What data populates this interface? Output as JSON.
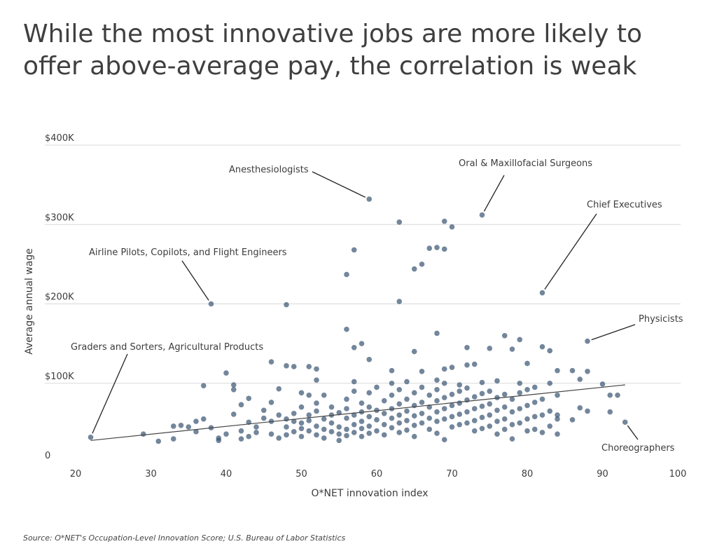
{
  "chart_data": {
    "type": "scatter",
    "title": "While the most innovative jobs are more likely to offer above-average pay, the correlation is weak",
    "xlabel": "O*NET innovation index",
    "ylabel": "Average annual wage",
    "xlim": [
      20,
      100
    ],
    "ylim": [
      0,
      400000
    ],
    "x_ticks": [
      20,
      30,
      40,
      50,
      60,
      70,
      80,
      90,
      100
    ],
    "x_tick_labels": [
      "20",
      "30",
      "40",
      "50",
      "60",
      "70",
      "80",
      "90",
      "100"
    ],
    "y_ticks": [
      0,
      100000,
      200000,
      300000,
      400000
    ],
    "y_tick_labels": [
      "0",
      "$100K",
      "$200K",
      "$300K",
      "$400K"
    ],
    "grid": "horizontal",
    "point_color": "#3d5775",
    "trendline": {
      "x": [
        22,
        93
      ],
      "y": [
        28000,
        98000
      ]
    },
    "annotations": [
      {
        "label": "Anesthesiologists",
        "x": 59,
        "y": 332000
      },
      {
        "label": "Oral & Maxillofacial Surgeons",
        "x": 74,
        "y": 312000
      },
      {
        "label": "Chief Executives",
        "x": 82,
        "y": 214000
      },
      {
        "label": "Airline Pilots, Copilots, and Flight Engineers",
        "x": 38,
        "y": 200000
      },
      {
        "label": "Physicists",
        "x": 88,
        "y": 153000
      },
      {
        "label": "Graders and Sorters, Agricultural Products",
        "x": 22,
        "y": 32000
      },
      {
        "label": "Choreographers",
        "x": 93,
        "y": 51000
      }
    ],
    "points": [
      [
        59,
        332000
      ],
      [
        74,
        312000
      ],
      [
        63,
        303000
      ],
      [
        69,
        304000
      ],
      [
        70,
        297000
      ],
      [
        57,
        268000
      ],
      [
        68,
        271000
      ],
      [
        67,
        270000
      ],
      [
        69,
        269000
      ],
      [
        66,
        250000
      ],
      [
        65,
        244000
      ],
      [
        56,
        237000
      ],
      [
        63,
        203000
      ],
      [
        82,
        214000
      ],
      [
        38,
        200000
      ],
      [
        48,
        199000
      ],
      [
        56,
        168000
      ],
      [
        68,
        163000
      ],
      [
        77,
        160000
      ],
      [
        58,
        150000
      ],
      [
        65,
        140000
      ],
      [
        72,
        145000
      ],
      [
        79,
        155000
      ],
      [
        88,
        153000
      ],
      [
        75,
        144000
      ],
      [
        83,
        141000
      ],
      [
        78,
        143000
      ],
      [
        82,
        146000
      ],
      [
        57,
        145000
      ],
      [
        59,
        130000
      ],
      [
        46,
        127000
      ],
      [
        48,
        122000
      ],
      [
        49,
        121000
      ],
      [
        51,
        121000
      ],
      [
        52,
        118000
      ],
      [
        40,
        113000
      ],
      [
        62,
        116000
      ],
      [
        66,
        115000
      ],
      [
        69,
        118000
      ],
      [
        70,
        120000
      ],
      [
        72,
        123000
      ],
      [
        73,
        124000
      ],
      [
        80,
        125000
      ],
      [
        84,
        116000
      ],
      [
        86,
        116000
      ],
      [
        88,
        115000
      ],
      [
        62,
        100000
      ],
      [
        57,
        102000
      ],
      [
        64,
        102000
      ],
      [
        68,
        104000
      ],
      [
        71,
        98000
      ],
      [
        74,
        101000
      ],
      [
        76,
        103000
      ],
      [
        79,
        100000
      ],
      [
        81,
        95000
      ],
      [
        87,
        105000
      ],
      [
        90,
        99000
      ],
      [
        91,
        85000
      ],
      [
        92,
        85000
      ],
      [
        93,
        51000
      ],
      [
        91,
        64000
      ],
      [
        88,
        65000
      ],
      [
        87,
        69000
      ],
      [
        86,
        54000
      ],
      [
        84,
        60000
      ],
      [
        22,
        32000
      ],
      [
        29,
        36000
      ],
      [
        31,
        27000
      ],
      [
        33,
        30000
      ],
      [
        33,
        46000
      ],
      [
        34,
        47000
      ],
      [
        35,
        45000
      ],
      [
        36,
        39000
      ],
      [
        36,
        52000
      ],
      [
        37,
        55000
      ],
      [
        37,
        97000
      ],
      [
        38,
        44000
      ],
      [
        39,
        31000
      ],
      [
        39,
        28000
      ],
      [
        40,
        36000
      ],
      [
        41,
        98000
      ],
      [
        41,
        92000
      ],
      [
        41,
        61000
      ],
      [
        42,
        40000
      ],
      [
        42,
        73000
      ],
      [
        42,
        30000
      ],
      [
        43,
        33000
      ],
      [
        43,
        51000
      ],
      [
        43,
        81000
      ],
      [
        44,
        45000
      ],
      [
        44,
        38000
      ],
      [
        45,
        66000
      ],
      [
        45,
        56000
      ],
      [
        46,
        76000
      ],
      [
        46,
        36000
      ],
      [
        46,
        52000
      ],
      [
        47,
        60000
      ],
      [
        47,
        93000
      ],
      [
        47,
        31000
      ],
      [
        48,
        45000
      ],
      [
        48,
        35000
      ],
      [
        48,
        55000
      ],
      [
        49,
        62000
      ],
      [
        49,
        39000
      ],
      [
        49,
        52000
      ],
      [
        50,
        88000
      ],
      [
        50,
        50000
      ],
      [
        50,
        43000
      ],
      [
        50,
        33000
      ],
      [
        50,
        70000
      ],
      [
        51,
        85000
      ],
      [
        51,
        60000
      ],
      [
        51,
        40000
      ],
      [
        51,
        53000
      ],
      [
        52,
        75000
      ],
      [
        52,
        46000
      ],
      [
        52,
        35000
      ],
      [
        52,
        65000
      ],
      [
        52,
        104000
      ],
      [
        53,
        85000
      ],
      [
        53,
        55000
      ],
      [
        53,
        42000
      ],
      [
        53,
        31000
      ],
      [
        54,
        70000
      ],
      [
        54,
        50000
      ],
      [
        54,
        39000
      ],
      [
        54,
        60000
      ],
      [
        55,
        63000
      ],
      [
        55,
        45000
      ],
      [
        55,
        36000
      ],
      [
        55,
        28000
      ],
      [
        56,
        80000
      ],
      [
        56,
        56000
      ],
      [
        56,
        42000
      ],
      [
        56,
        34000
      ],
      [
        56,
        68000
      ],
      [
        57,
        90000
      ],
      [
        57,
        60000
      ],
      [
        57,
        48000
      ],
      [
        57,
        38000
      ],
      [
        58,
        75000
      ],
      [
        58,
        64000
      ],
      [
        58,
        52000
      ],
      [
        58,
        43000
      ],
      [
        58,
        33000
      ],
      [
        59,
        88000
      ],
      [
        59,
        70000
      ],
      [
        59,
        58000
      ],
      [
        59,
        46000
      ],
      [
        59,
        37000
      ],
      [
        60,
        95000
      ],
      [
        60,
        66000
      ],
      [
        60,
        54000
      ],
      [
        60,
        40000
      ],
      [
        61,
        78000
      ],
      [
        61,
        62000
      ],
      [
        61,
        48000
      ],
      [
        61,
        35000
      ],
      [
        62,
        85000
      ],
      [
        62,
        68000
      ],
      [
        62,
        56000
      ],
      [
        62,
        44000
      ],
      [
        63,
        92000
      ],
      [
        63,
        74000
      ],
      [
        63,
        60000
      ],
      [
        63,
        50000
      ],
      [
        63,
        38000
      ],
      [
        64,
        80000
      ],
      [
        64,
        65000
      ],
      [
        64,
        53000
      ],
      [
        64,
        41000
      ],
      [
        65,
        88000
      ],
      [
        65,
        72000
      ],
      [
        65,
        59000
      ],
      [
        65,
        47000
      ],
      [
        65,
        33000
      ],
      [
        66,
        95000
      ],
      [
        66,
        76000
      ],
      [
        66,
        62000
      ],
      [
        66,
        50000
      ],
      [
        67,
        85000
      ],
      [
        67,
        70000
      ],
      [
        67,
        56000
      ],
      [
        67,
        42000
      ],
      [
        68,
        92000
      ],
      [
        68,
        78000
      ],
      [
        68,
        64000
      ],
      [
        68,
        52000
      ],
      [
        68,
        37000
      ],
      [
        69,
        100000
      ],
      [
        69,
        82000
      ],
      [
        69,
        68000
      ],
      [
        69,
        55000
      ],
      [
        69,
        29000
      ],
      [
        70,
        86000
      ],
      [
        70,
        72000
      ],
      [
        70,
        58000
      ],
      [
        70,
        45000
      ],
      [
        71,
        90000
      ],
      [
        71,
        75000
      ],
      [
        71,
        61000
      ],
      [
        71,
        48000
      ],
      [
        72,
        94000
      ],
      [
        72,
        79000
      ],
      [
        72,
        64000
      ],
      [
        72,
        50000
      ],
      [
        73,
        83000
      ],
      [
        73,
        68000
      ],
      [
        73,
        53000
      ],
      [
        73,
        40000
      ],
      [
        74,
        87000
      ],
      [
        74,
        71000
      ],
      [
        74,
        57000
      ],
      [
        74,
        43000
      ],
      [
        75,
        90000
      ],
      [
        75,
        74000
      ],
      [
        75,
        60000
      ],
      [
        75,
        46000
      ],
      [
        76,
        82000
      ],
      [
        76,
        66000
      ],
      [
        76,
        52000
      ],
      [
        76,
        36000
      ],
      [
        77,
        86000
      ],
      [
        77,
        70000
      ],
      [
        77,
        55000
      ],
      [
        77,
        42000
      ],
      [
        78,
        80000
      ],
      [
        78,
        64000
      ],
      [
        78,
        48000
      ],
      [
        78,
        30000
      ],
      [
        79,
        88000
      ],
      [
        79,
        68000
      ],
      [
        79,
        50000
      ],
      [
        80,
        92000
      ],
      [
        80,
        72000
      ],
      [
        80,
        55000
      ],
      [
        80,
        40000
      ],
      [
        81,
        76000
      ],
      [
        81,
        58000
      ],
      [
        81,
        42000
      ],
      [
        82,
        80000
      ],
      [
        82,
        60000
      ],
      [
        82,
        38000
      ],
      [
        83,
        100000
      ],
      [
        83,
        65000
      ],
      [
        83,
        46000
      ],
      [
        84,
        85000
      ],
      [
        84,
        55000
      ],
      [
        84,
        36000
      ]
    ]
  },
  "source": "Source:  O*NET's Occupation-Level Innovation Score; U.S. Bureau of Labor Statistics"
}
